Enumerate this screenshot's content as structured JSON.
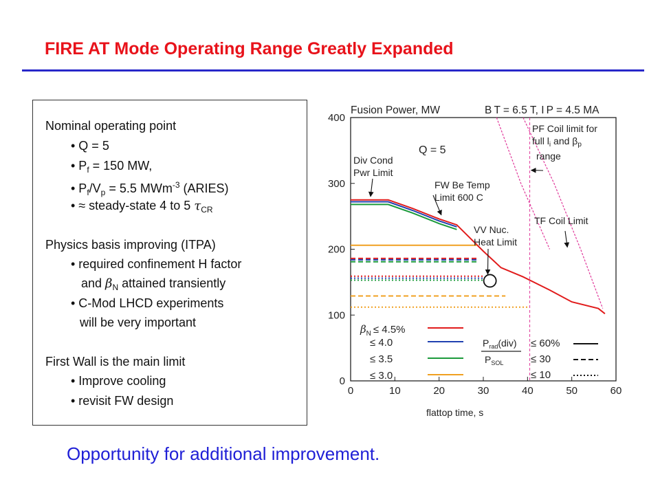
{
  "slide": {
    "title": "FIRE AT Mode Operating Range Greatly Expanded",
    "footer": "Opportunity for additional  improvement."
  },
  "text_box": {
    "nominal_heading": "Nominal operating point",
    "q": "• Q = 5",
    "pf_pre": "• P",
    "pf_sub": "f",
    "pf_post": " = 150 MW,",
    "pfvp_pre": "• P",
    "pfvp_sub1": "f",
    "pfvp_mid": "/V",
    "pfvp_sub2": "p",
    "pfvp_val": " = 5.5 MWm",
    "pfvp_sup": "-3",
    "pfvp_post": " (ARIES)",
    "steady_pre": "• ≈ steady-state 4 to 5 ",
    "steady_tau": "τ",
    "steady_sub": "CR",
    "physics_heading": "Physics basis improving (ITPA)",
    "hfactor": "• required confinement H factor",
    "betan_pre": "and ",
    "betan_beta": "β",
    "betan_sub": "N",
    "betan_post": " attained transiently",
    "cmod": "• C-Mod LHCD experiments",
    "cmod_cont": "will be very important",
    "firstwall_heading": "First Wall is the main limit",
    "cooling": "• Improve cooling",
    "revisit": "• revisit FW design"
  },
  "colors": {
    "title": "#e8121a",
    "rule": "#2727c9",
    "footer": "#1f1fd6",
    "beta45": "#e11b1b",
    "beta40": "#2040b0",
    "beta35": "#1a9a3a",
    "beta30": "#f0a020",
    "limit_line": "#e0389a"
  },
  "chart_data": {
    "type": "line",
    "title": "Fusion Power, MW",
    "title_right": "B T = 6.5 T, I P = 4.5 MA",
    "xlabel": "flattop time, s",
    "ylabel": "",
    "xlim": [
      0,
      60
    ],
    "ylim": [
      0,
      400
    ],
    "x_ticks": [
      0,
      10,
      20,
      30,
      40,
      50,
      60
    ],
    "y_ticks": [
      0,
      100,
      200,
      300,
      400
    ],
    "grid": false,
    "annotations": {
      "q5": "Q = 5",
      "div_cond": [
        "Div Cond",
        "Pwr Limit"
      ],
      "fw_be": [
        "FW Be Temp",
        "Limit 600 C"
      ],
      "vv_nuc": [
        "VV Nuc.",
        "Heat Limit"
      ],
      "pf_coil": [
        "PF Coil limit for",
        "full l",
        "i",
        " and β",
        "p",
        "range"
      ],
      "tf_coil": "TF Coil Limit"
    },
    "legend_beta": [
      {
        "label": "≤ 4.5%",
        "prefix": "β",
        "sub": "N",
        "color": "#e11b1b"
      },
      {
        "label": "≤ 4.0",
        "color": "#2040b0"
      },
      {
        "label": "≤ 3.5",
        "color": "#1a9a3a"
      },
      {
        "label": "≤ 3.0",
        "color": "#f0a020"
      }
    ],
    "legend_prad": {
      "numerator": "P",
      "num_sub": "rad",
      "num_post": "(div)",
      "denominator": "P",
      "den_sub": "SOL",
      "items": [
        {
          "label": "≤ 60%",
          "dash": "solid"
        },
        {
          "label": "≤ 30",
          "dash": "dashed"
        },
        {
          "label": "≤ 10",
          "dash": "dotted"
        }
      ]
    },
    "series": [
      {
        "beta": "4.5",
        "prad": "60",
        "color": "#e11b1b",
        "dash": "solid",
        "x": [
          0,
          8.5,
          14,
          20,
          24,
          30,
          34,
          39,
          45,
          50,
          56,
          57.5
        ],
        "y": [
          275,
          275,
          262,
          246,
          237,
          197,
          172,
          158,
          138,
          120,
          110,
          102
        ]
      },
      {
        "beta": "4.0",
        "prad": "60",
        "color": "#2040b0",
        "dash": "solid",
        "x": [
          0,
          8.5,
          14,
          20,
          24
        ],
        "y": [
          272,
          272,
          259,
          243,
          234
        ]
      },
      {
        "beta": "3.5",
        "prad": "60",
        "color": "#1a9a3a",
        "dash": "solid",
        "x": [
          0,
          8.5,
          14,
          20,
          24
        ],
        "y": [
          268,
          268,
          255,
          239,
          230
        ]
      },
      {
        "beta": "3.0",
        "prad": "60",
        "color": "#f0a020",
        "dash": "solid",
        "x": [
          0,
          28.5
        ],
        "y": [
          206,
          206
        ]
      },
      {
        "beta": "4.5",
        "prad": "30",
        "color": "#e11b1b",
        "dash": "dashed",
        "x": [
          0,
          28.7
        ],
        "y": [
          186,
          186
        ]
      },
      {
        "beta": "4.0",
        "prad": "30",
        "color": "#2040b0",
        "dash": "dashed",
        "x": [
          0,
          28.7
        ],
        "y": [
          184,
          184
        ]
      },
      {
        "beta": "3.5",
        "prad": "30",
        "color": "#1a9a3a",
        "dash": "dashed",
        "x": [
          0,
          28.7
        ],
        "y": [
          181,
          181
        ]
      },
      {
        "beta": "3.0",
        "prad": "30",
        "color": "#f0a020",
        "dash": "dashed",
        "x": [
          0,
          35
        ],
        "y": [
          129,
          129
        ]
      },
      {
        "beta": "4.5",
        "prad": "10",
        "color": "#e11b1b",
        "dash": "dotted",
        "x": [
          0,
          30
        ],
        "y": [
          159,
          159
        ]
      },
      {
        "beta": "4.0",
        "prad": "10",
        "color": "#2040b0",
        "dash": "dotted",
        "x": [
          0,
          30
        ],
        "y": [
          156,
          156
        ]
      },
      {
        "beta": "3.5",
        "prad": "10",
        "color": "#1a9a3a",
        "dash": "dotted",
        "x": [
          0,
          30
        ],
        "y": [
          153,
          153
        ]
      },
      {
        "beta": "3.0",
        "prad": "10",
        "color": "#f0a020",
        "dash": "dotted",
        "x": [
          0,
          40
        ],
        "y": [
          112,
          112
        ]
      }
    ],
    "pf_limit": {
      "x": [
        33,
        38.5,
        45
      ],
      "y": [
        400,
        300,
        200
      ]
    },
    "tf_limit": {
      "x": [
        39,
        46,
        52,
        57
      ],
      "y": [
        400,
        300,
        200,
        110
      ]
    },
    "pf_vertical_x": 40.5,
    "circle_point": {
      "x": 31.5,
      "y": 152
    }
  }
}
